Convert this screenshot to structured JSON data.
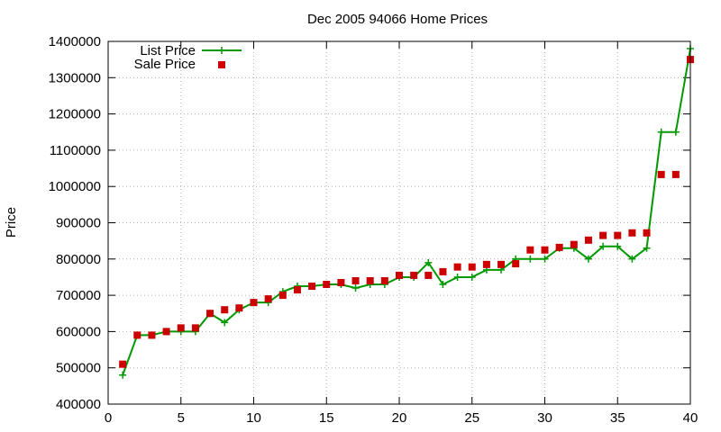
{
  "chart_data": {
    "type": "line",
    "title": "Dec 2005 94066 Home Prices",
    "xlabel": "",
    "ylabel": "Price",
    "xlim": [
      0,
      40
    ],
    "ylim": [
      400000,
      1400000
    ],
    "x_ticks": [
      0,
      5,
      10,
      15,
      20,
      25,
      30,
      35,
      40
    ],
    "y_ticks": [
      400000,
      500000,
      600000,
      700000,
      800000,
      900000,
      1000000,
      1100000,
      1200000,
      1300000,
      1400000
    ],
    "grid": true,
    "legend_position": "top-left",
    "series": [
      {
        "name": "List Price",
        "style": "line+cross",
        "color": "#009900",
        "x": [
          1,
          2,
          3,
          4,
          5,
          6,
          7,
          8,
          9,
          10,
          11,
          12,
          13,
          14,
          15,
          16,
          17,
          18,
          19,
          20,
          21,
          22,
          23,
          24,
          25,
          26,
          27,
          28,
          29,
          30,
          31,
          32,
          33,
          34,
          35,
          36,
          37,
          38,
          39,
          40
        ],
        "y": [
          480000,
          590000,
          590000,
          600000,
          600000,
          600000,
          650000,
          625000,
          660000,
          680000,
          680000,
          710000,
          725000,
          725000,
          730000,
          730000,
          720000,
          730000,
          730000,
          750000,
          750000,
          790000,
          730000,
          750000,
          750000,
          770000,
          770000,
          800000,
          800000,
          800000,
          830000,
          830000,
          800000,
          835000,
          835000,
          800000,
          830000,
          1150000,
          1150000,
          1380000
        ]
      },
      {
        "name": "Sale Price",
        "style": "square",
        "color": "#cc0000",
        "x": [
          1,
          2,
          3,
          4,
          5,
          6,
          7,
          8,
          9,
          10,
          11,
          12,
          13,
          14,
          15,
          16,
          17,
          18,
          19,
          20,
          21,
          22,
          23,
          24,
          25,
          26,
          27,
          28,
          29,
          30,
          31,
          32,
          33,
          34,
          35,
          36,
          37,
          38,
          39,
          40
        ],
        "y": [
          510000,
          590000,
          590000,
          600000,
          610000,
          610000,
          650000,
          660000,
          665000,
          680000,
          690000,
          700000,
          715000,
          725000,
          730000,
          735000,
          740000,
          740000,
          740000,
          755000,
          755000,
          755000,
          765000,
          778000,
          778000,
          785000,
          785000,
          787000,
          825000,
          825000,
          832000,
          840000,
          852000,
          865000,
          865000,
          872000,
          872000,
          1033000,
          1033000,
          1350000
        ]
      }
    ]
  }
}
